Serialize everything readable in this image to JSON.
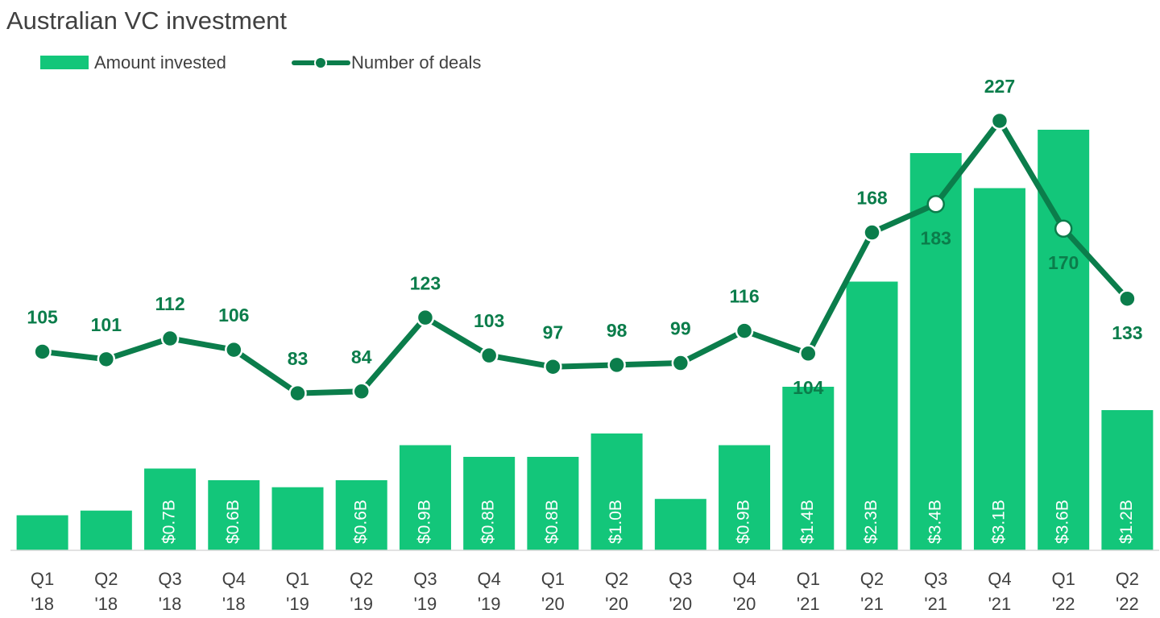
{
  "chart_data": {
    "type": "bar",
    "title": "Australian VC investment",
    "categories": [
      "Q1\n'18",
      "Q2\n'18",
      "Q3\n'18",
      "Q4\n'18",
      "Q1\n'19",
      "Q2\n'19",
      "Q3\n'19",
      "Q4\n'19",
      "Q1\n'20",
      "Q2\n'20",
      "Q3\n'20",
      "Q4\n'20",
      "Q1\n'21",
      "Q2\n'21",
      "Q3\n'21",
      "Q4\n'21",
      "Q1\n'22",
      "Q2\n'22"
    ],
    "series": [
      {
        "name": "Amount invested",
        "type": "bar",
        "color": "#13c67a",
        "values": [
          0.3,
          0.34,
          0.7,
          0.6,
          0.54,
          0.6,
          0.9,
          0.8,
          0.8,
          1.0,
          0.44,
          0.9,
          1.4,
          2.3,
          3.4,
          3.1,
          3.6,
          1.2
        ],
        "value_labels": [
          null,
          null,
          "$0.7B",
          "$0.6B",
          null,
          "$0.6B",
          "$0.9B",
          "$0.8B",
          "$0.8B",
          "$1.0B",
          null,
          "$0.9B",
          "$1.4B",
          "$2.3B",
          "$3.4B",
          "$3.1B",
          "$3.6B",
          "$1.2B"
        ]
      },
      {
        "name": "Number of deals",
        "type": "line",
        "axis": "y2",
        "color": "#0b7d4b",
        "values": [
          105,
          101,
          112,
          106,
          83,
          84,
          123,
          103,
          97,
          98,
          99,
          116,
          104,
          168,
          183,
          227,
          170,
          133
        ]
      }
    ],
    "ylim": [
      0,
      4
    ],
    "y2lim": [
      0,
      247
    ]
  }
}
